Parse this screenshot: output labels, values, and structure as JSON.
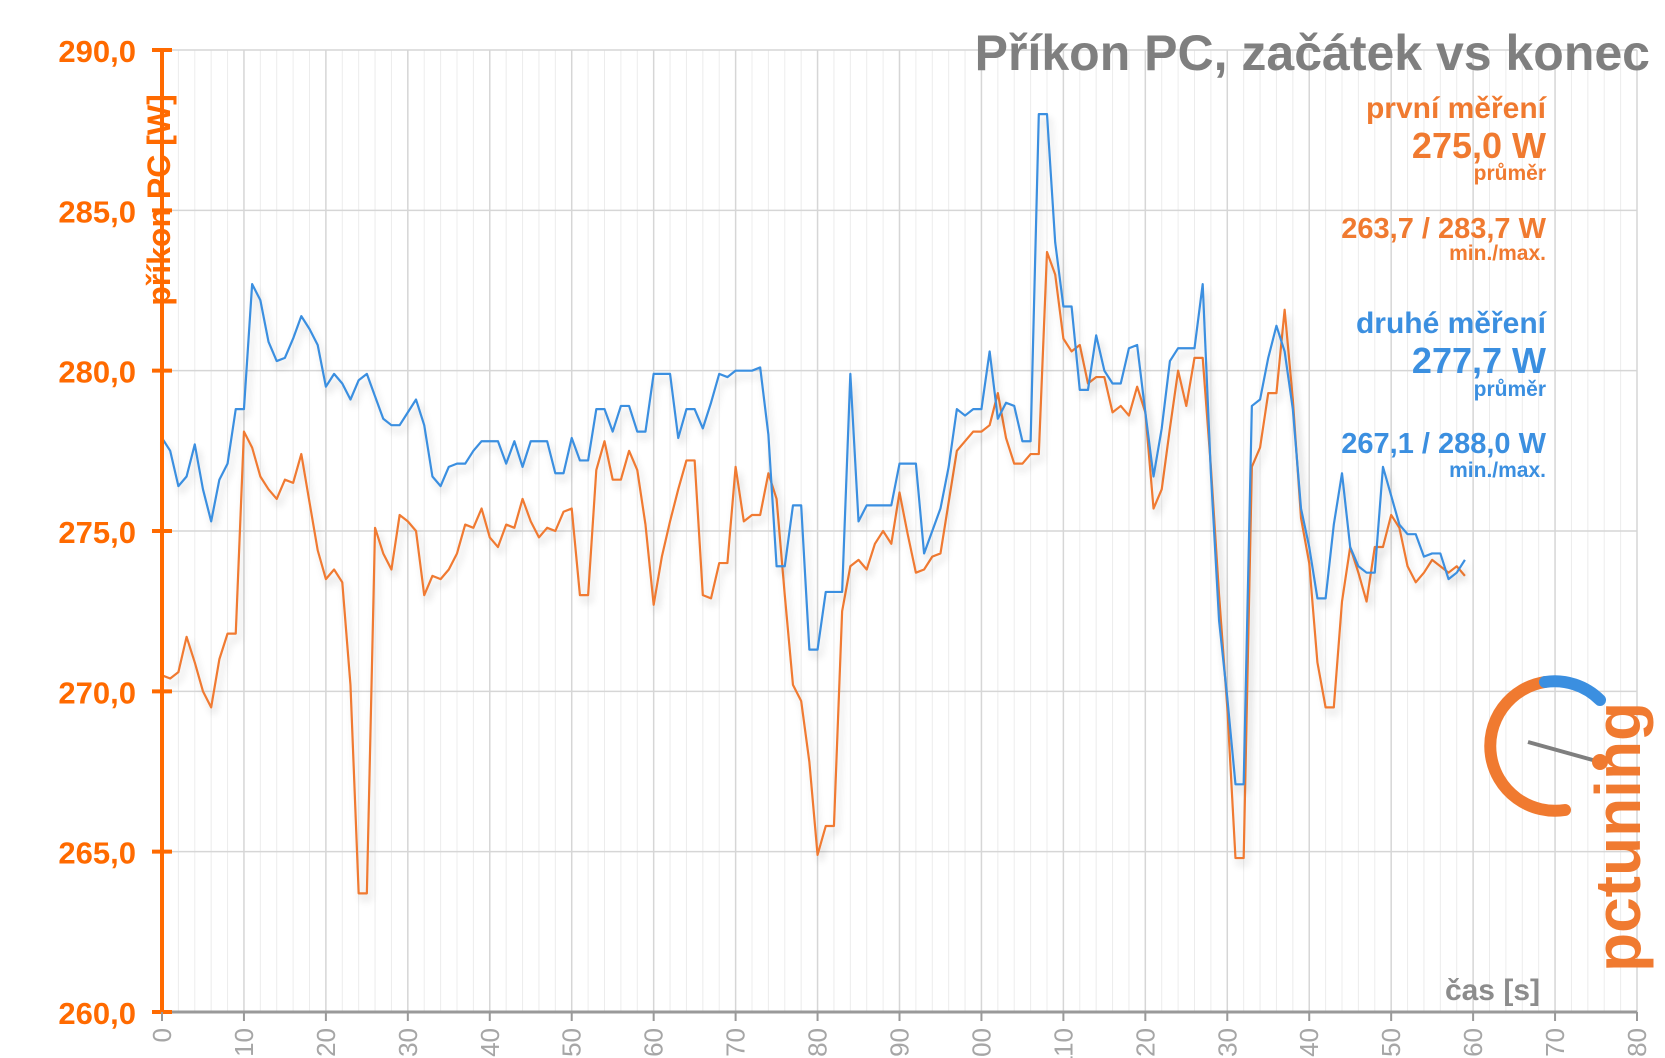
{
  "chart_data": {
    "type": "line",
    "title": "Příkon PC, začátek vs konec",
    "xlabel": "čas [s]",
    "ylabel": "příkon PC [W]",
    "xlim": [
      0,
      180
    ],
    "ylim": [
      260,
      290
    ],
    "x_ticks": [
      0,
      10,
      20,
      30,
      40,
      50,
      60,
      70,
      80,
      90,
      100,
      110,
      120,
      130,
      140,
      150,
      160,
      170,
      180
    ],
    "y_ticks": [
      260,
      265,
      270,
      275,
      280,
      285,
      290
    ],
    "y_tick_labels": [
      "260,0",
      "265,0",
      "270,0",
      "275,0",
      "280,0",
      "285,0",
      "290,0"
    ],
    "grid": true,
    "colors": {
      "series_1": "#f07a30",
      "series_2": "#3b8fe0",
      "axis_y": "#ff6a00",
      "axis_x": "#999999",
      "title": "#7f7f7f",
      "grid": "#dcdcdc"
    },
    "series": [
      {
        "name": "první měření",
        "color": "#f07a30",
        "values": [
          270.5,
          270.4,
          270.6,
          271.7,
          270.9,
          270.0,
          269.5,
          271.0,
          271.8,
          271.8,
          278.1,
          277.6,
          276.7,
          276.3,
          276.0,
          276.6,
          276.5,
          277.4,
          275.9,
          274.4,
          273.5,
          273.8,
          273.4,
          270.2,
          263.7,
          263.7,
          275.1,
          274.3,
          273.8,
          275.5,
          275.3,
          275.0,
          273.0,
          273.6,
          273.5,
          273.8,
          274.3,
          275.2,
          275.1,
          275.7,
          274.8,
          274.5,
          275.2,
          275.1,
          276.0,
          275.3,
          274.8,
          275.1,
          275.0,
          275.6,
          275.7,
          273.0,
          273.0,
          276.9,
          277.8,
          276.6,
          276.6,
          277.5,
          276.9,
          275.2,
          272.7,
          274.2,
          275.3,
          276.3,
          277.2,
          277.2,
          273.0,
          272.9,
          274.0,
          274.0,
          277.0,
          275.3,
          275.5,
          275.5,
          276.8,
          276.0,
          273.0,
          270.2,
          269.7,
          267.8,
          264.9,
          265.8,
          265.8,
          272.5,
          273.9,
          274.1,
          273.8,
          274.6,
          275.0,
          274.6,
          276.2,
          274.9,
          273.7,
          273.8,
          274.2,
          274.3,
          275.9,
          277.5,
          277.8,
          278.1,
          278.1,
          278.3,
          279.3,
          277.9,
          277.1,
          277.1,
          277.4,
          277.4,
          283.7,
          283.0,
          281.0,
          280.6,
          280.8,
          279.6,
          279.8,
          279.8,
          278.7,
          278.9,
          278.6,
          279.5,
          278.7,
          275.7,
          276.3,
          278.2,
          280.0,
          278.9,
          280.4,
          280.4,
          277.0,
          273.0,
          269.5,
          264.8,
          264.8,
          277.0,
          277.6,
          279.3,
          279.3,
          281.9,
          279.1,
          275.4,
          274.0,
          270.9,
          269.5,
          269.5,
          272.8,
          274.5,
          273.7,
          272.8,
          274.5,
          274.5,
          275.5,
          275.1,
          273.9,
          273.4,
          273.7,
          274.1,
          273.9,
          273.7,
          273.9,
          273.6
        ]
      },
      {
        "name": "druhé měření",
        "color": "#3b8fe0",
        "values": [
          277.9,
          277.5,
          276.4,
          276.7,
          277.7,
          276.3,
          275.3,
          276.6,
          277.1,
          278.8,
          278.8,
          282.7,
          282.2,
          280.9,
          280.3,
          280.4,
          281.0,
          281.7,
          281.3,
          280.8,
          279.5,
          279.9,
          279.6,
          279.1,
          279.7,
          279.9,
          279.2,
          278.5,
          278.3,
          278.3,
          278.7,
          279.1,
          278.3,
          276.7,
          276.4,
          277.0,
          277.1,
          277.1,
          277.5,
          277.8,
          277.8,
          277.8,
          277.1,
          277.8,
          277.0,
          277.8,
          277.8,
          277.8,
          276.8,
          276.8,
          277.9,
          277.2,
          277.2,
          278.8,
          278.8,
          278.1,
          278.9,
          278.9,
          278.1,
          278.1,
          279.9,
          279.9,
          279.9,
          277.9,
          278.8,
          278.8,
          278.2,
          279.0,
          279.9,
          279.8,
          280.0,
          280.0,
          280.0,
          280.1,
          278.0,
          273.9,
          273.9,
          275.8,
          275.8,
          271.3,
          271.3,
          273.1,
          273.1,
          273.1,
          279.9,
          275.3,
          275.8,
          275.8,
          275.8,
          275.8,
          277.1,
          277.1,
          277.1,
          274.3,
          275.0,
          275.7,
          277.0,
          278.8,
          278.6,
          278.8,
          278.8,
          280.6,
          278.5,
          279.0,
          278.9,
          277.8,
          277.8,
          288.0,
          288.0,
          284.0,
          282.0,
          282.0,
          279.4,
          279.4,
          281.1,
          280.0,
          279.6,
          279.6,
          280.7,
          280.8,
          278.7,
          276.7,
          278.2,
          280.3,
          280.7,
          280.7,
          280.7,
          282.7,
          276.8,
          272.2,
          269.8,
          267.1,
          267.1,
          278.9,
          279.1,
          280.4,
          281.4,
          280.6,
          278.8,
          275.7,
          274.5,
          272.9,
          272.9,
          275.2,
          276.8,
          274.5,
          273.9,
          273.7,
          273.7,
          277.0,
          276.1,
          275.2,
          274.9,
          274.9,
          274.2,
          274.3,
          274.3,
          273.5,
          273.7,
          274.1
        ]
      }
    ],
    "legend_blocks": [
      {
        "label": "první měření",
        "avg": "275,0 W",
        "avg_label": "průměr",
        "minmax": "263,7 / 283,7 W",
        "minmax_label": "min./max.",
        "color": "#f07a30"
      },
      {
        "label": "druhé měření",
        "avg": "277,7 W",
        "avg_label": "průměr",
        "minmax": "267,1 / 288,0 W",
        "minmax_label": "min./max.",
        "color": "#3b8fe0"
      }
    ]
  },
  "logo": {
    "text": "pctuning",
    "name": "pctuning-logo"
  }
}
